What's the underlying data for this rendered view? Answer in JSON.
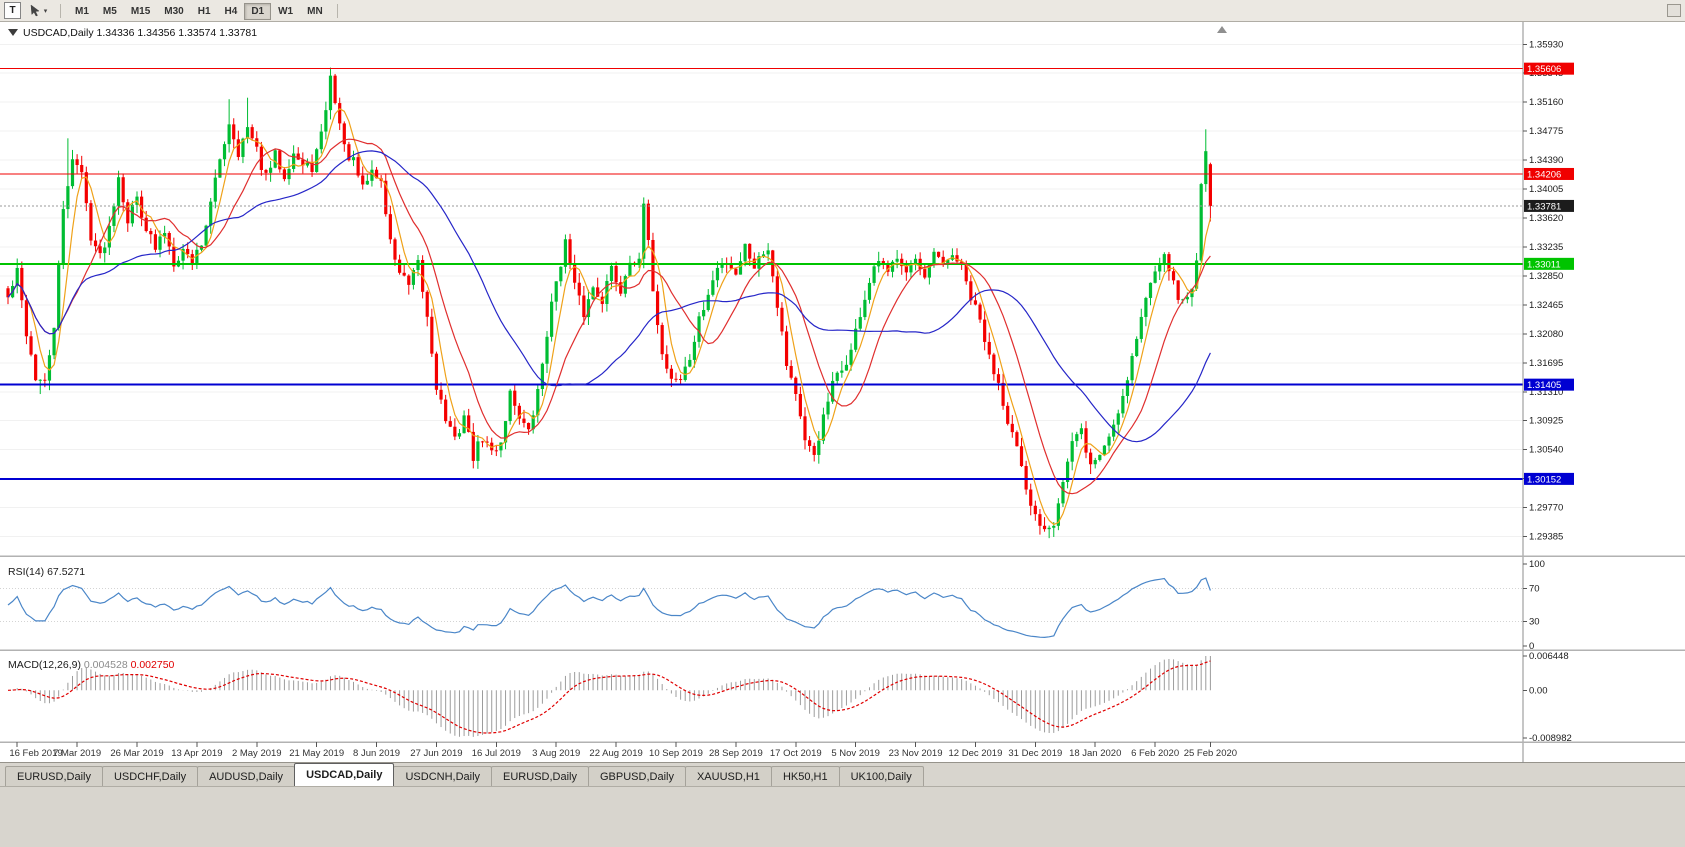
{
  "toolbar": {
    "t_button": "T",
    "timeframes": [
      "M1",
      "M5",
      "M15",
      "M30",
      "H1",
      "H4",
      "D1",
      "W1",
      "MN"
    ],
    "active_timeframe": "D1"
  },
  "chart": {
    "symbol_period": "USDCAD,Daily"
  },
  "chart_data": {
    "type": "candlestick",
    "title": "USDCAD,Daily",
    "ohlc_current": {
      "open": "1.34336",
      "high": "1.34356",
      "low": "1.33574",
      "close": "1.33781"
    },
    "bars": 262,
    "y_range": [
      1.2918,
      1.3612
    ],
    "y_ticks": [
      "1.35930",
      "1.35545",
      "1.35160",
      "1.34775",
      "1.34390",
      "1.34005",
      "1.33620",
      "1.33235",
      "1.32850",
      "1.32465",
      "1.32080",
      "1.31695",
      "1.31310",
      "1.30925",
      "1.30540",
      "1.30155",
      "1.29770",
      "1.29385"
    ],
    "x_labels": [
      "16 Feb 2019",
      "7 Mar 2019",
      "26 Mar 2019",
      "13 Apr 2019",
      "2 May 2019",
      "21 May 2019",
      "8 Jun 2019",
      "27 Jun 2019",
      "16 Jul 2019",
      "3 Aug 2019",
      "22 Aug 2019",
      "10 Sep 2019",
      "28 Sep 2019",
      "17 Oct 2019",
      "5 Nov 2019",
      "23 Nov 2019",
      "12 Dec 2019",
      "31 Dec 2019",
      "18 Jan 2020",
      "6 Feb 2020",
      "25 Feb 2020"
    ],
    "hlines": [
      {
        "label": "1.35606",
        "price": 1.35606,
        "color": "#f00000",
        "width": 1
      },
      {
        "label": "1.34206",
        "price": 1.34206,
        "color": "#f00000",
        "width": 1
      },
      {
        "label": "1.33011",
        "price": 1.33011,
        "color": "#00c400",
        "width": 2
      },
      {
        "label": "1.31405",
        "price": 1.31405,
        "color": "#0000d2",
        "width": 2
      },
      {
        "label": "1.30152",
        "price": 1.30152,
        "color": "#0000d2",
        "width": 2
      }
    ],
    "bid_line": {
      "label": "1.33781",
      "price": 1.33781,
      "badge_color": "#1c1c1c",
      "line_color": "#999999"
    },
    "candle_colors": {
      "bull": "#00bd33",
      "bear": "#f40000"
    },
    "moving_averages": [
      {
        "name": "ma-fast",
        "period": 5,
        "color": "#efa21a"
      },
      {
        "name": "ma-mid",
        "period": 13,
        "color": "#e02f2f"
      },
      {
        "name": "ma-slow",
        "period": 34,
        "color": "#2626c8"
      }
    ],
    "price_path": [
      [
        0,
        1.3255
      ],
      [
        2,
        1.329
      ],
      [
        4,
        1.321
      ],
      [
        6,
        1.315
      ],
      [
        8,
        1.314
      ],
      [
        10,
        1.322
      ],
      [
        12,
        1.337
      ],
      [
        14,
        1.3445
      ],
      [
        16,
        1.342
      ],
      [
        18,
        1.334
      ],
      [
        20,
        1.331
      ],
      [
        22,
        1.335
      ],
      [
        24,
        1.342
      ],
      [
        26,
        1.336
      ],
      [
        28,
        1.339
      ],
      [
        30,
        1.335
      ],
      [
        32,
        1.332
      ],
      [
        34,
        1.3345
      ],
      [
        36,
        1.3305
      ],
      [
        38,
        1.332
      ],
      [
        40,
        1.3305
      ],
      [
        42,
        1.333
      ],
      [
        44,
        1.338
      ],
      [
        46,
        1.344
      ],
      [
        48,
        1.349
      ],
      [
        50,
        1.345
      ],
      [
        52,
        1.348
      ],
      [
        54,
        1.345
      ],
      [
        56,
        1.3415
      ],
      [
        58,
        1.3445
      ],
      [
        60,
        1.342
      ],
      [
        62,
        1.345
      ],
      [
        64,
        1.343
      ],
      [
        66,
        1.343
      ],
      [
        68,
        1.347
      ],
      [
        70,
        1.3548
      ],
      [
        71,
        1.352
      ],
      [
        73,
        1.3455
      ],
      [
        75,
        1.3435
      ],
      [
        77,
        1.34
      ],
      [
        79,
        1.3425
      ],
      [
        81,
        1.341
      ],
      [
        83,
        1.333
      ],
      [
        85,
        1.329
      ],
      [
        87,
        1.327
      ],
      [
        89,
        1.33
      ],
      [
        91,
        1.323
      ],
      [
        93,
        1.314
      ],
      [
        95,
        1.3095
      ],
      [
        97,
        1.3065
      ],
      [
        99,
        1.31
      ],
      [
        101,
        1.3045
      ],
      [
        103,
        1.307
      ],
      [
        105,
        1.305
      ],
      [
        107,
        1.3065
      ],
      [
        109,
        1.313
      ],
      [
        111,
        1.31
      ],
      [
        113,
        1.3075
      ],
      [
        115,
        1.313
      ],
      [
        117,
        1.321
      ],
      [
        119,
        1.328
      ],
      [
        121,
        1.333
      ],
      [
        123,
        1.327
      ],
      [
        125,
        1.3235
      ],
      [
        127,
        1.327
      ],
      [
        129,
        1.3255
      ],
      [
        131,
        1.3295
      ],
      [
        133,
        1.3265
      ],
      [
        135,
        1.331
      ],
      [
        137,
        1.33
      ],
      [
        138,
        1.338
      ],
      [
        140,
        1.327
      ],
      [
        142,
        1.318
      ],
      [
        144,
        1.315
      ],
      [
        146,
        1.3148
      ],
      [
        148,
        1.3175
      ],
      [
        150,
        1.3225
      ],
      [
        152,
        1.326
      ],
      [
        154,
        1.3295
      ],
      [
        156,
        1.3305
      ],
      [
        158,
        1.329
      ],
      [
        160,
        1.3325
      ],
      [
        162,
        1.33
      ],
      [
        165,
        1.3325
      ],
      [
        167,
        1.325
      ],
      [
        169,
        1.317
      ],
      [
        171,
        1.313
      ],
      [
        173,
        1.306
      ],
      [
        175,
        1.3048
      ],
      [
        177,
        1.3095
      ],
      [
        179,
        1.314
      ],
      [
        181,
        1.316
      ],
      [
        183,
        1.3185
      ],
      [
        185,
        1.3235
      ],
      [
        187,
        1.3275
      ],
      [
        189,
        1.3305
      ],
      [
        191,
        1.3285
      ],
      [
        193,
        1.3315
      ],
      [
        195,
        1.3295
      ],
      [
        197,
        1.3305
      ],
      [
        199,
        1.3275
      ],
      [
        201,
        1.3315
      ],
      [
        203,
        1.3295
      ],
      [
        205,
        1.3315
      ],
      [
        207,
        1.3295
      ],
      [
        209,
        1.3255
      ],
      [
        211,
        1.3225
      ],
      [
        213,
        1.3175
      ],
      [
        215,
        1.3145
      ],
      [
        217,
        1.3095
      ],
      [
        219,
        1.3055
      ],
      [
        221,
        1.2995
      ],
      [
        223,
        1.2965
      ],
      [
        225,
        1.2952
      ],
      [
        227,
        1.296
      ],
      [
        229,
        1.3012
      ],
      [
        231,
        1.3062
      ],
      [
        233,
        1.3078
      ],
      [
        235,
        1.3032
      ],
      [
        237,
        1.3048
      ],
      [
        239,
        1.3072
      ],
      [
        241,
        1.3105
      ],
      [
        243,
        1.3152
      ],
      [
        245,
        1.3205
      ],
      [
        247,
        1.3255
      ],
      [
        249,
        1.3292
      ],
      [
        251,
        1.3322
      ],
      [
        253,
        1.3272
      ],
      [
        255,
        1.3248
      ],
      [
        257,
        1.3268
      ],
      [
        258,
        1.3312
      ],
      [
        259,
        1.3402
      ],
      [
        260,
        1.3458
      ],
      [
        261,
        1.33781
      ]
    ],
    "wick_overrides": [
      [
        7,
        "l",
        1.3128
      ],
      [
        13,
        "h",
        1.3468
      ],
      [
        48,
        "h",
        1.352
      ],
      [
        52,
        "h",
        1.3522
      ],
      [
        70,
        "h",
        1.3562
      ],
      [
        138,
        "h",
        1.3387
      ],
      [
        225,
        "l",
        1.2945
      ],
      [
        227,
        "l",
        1.2938
      ],
      [
        260,
        "h",
        1.348
      ]
    ],
    "last_bar": [
      1.34336,
      1.34356,
      1.33574,
      1.33781
    ],
    "indicators": {
      "rsi": {
        "label": "RSI(14)",
        "value": "67.5271",
        "color": "#4a86c8",
        "axis_labels": [
          "100",
          "70",
          "30",
          "0"
        ],
        "axis_values": [
          100,
          70,
          30,
          0
        ],
        "scale": [
          0,
          100
        ],
        "levels": [
          70,
          30
        ]
      },
      "macd": {
        "label": "MACD(12,26,9)",
        "value_main": "0.004528",
        "value_signal": "0.002750",
        "axis_labels": [
          "0.006448",
          "0.00",
          "-0.008982"
        ],
        "axis_values": [
          0.006448,
          0,
          -0.008982
        ],
        "scale": [
          -0.008982,
          0.006448
        ],
        "hist_color": "#9c9c9c",
        "signal_color": "#e00000"
      }
    }
  },
  "tabs": {
    "items": [
      "EURUSD,Daily",
      "USDCHF,Daily",
      "AUDUSD,Daily",
      "USDCAD,Daily",
      "USDCNH,Daily",
      "EURUSD,Daily",
      "GBPUSD,Daily",
      "XAUUSD,H1",
      "HK50,H1",
      "UK100,Daily"
    ],
    "active_index": 3
  }
}
